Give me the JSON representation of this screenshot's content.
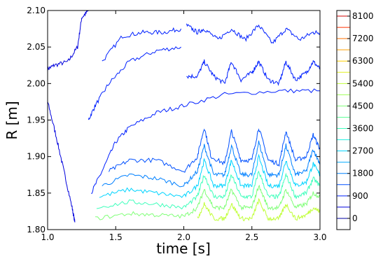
{
  "chart_data": {
    "type": "contour",
    "xlabel": "time [s]",
    "ylabel": "R [m]",
    "xlim": [
      1.0,
      3.0
    ],
    "ylim": [
      1.8,
      2.1
    ],
    "xticks": [
      "1.0",
      "1.5",
      "2.0",
      "2.5",
      "3.0"
    ],
    "yticks": [
      "1.80",
      "1.85",
      "1.90",
      "1.95",
      "2.00",
      "2.05",
      "2.10"
    ],
    "colorbar": {
      "levels": [
        0,
        450,
        900,
        1350,
        1800,
        2250,
        2700,
        3150,
        3600,
        4050,
        4500,
        4950,
        5400,
        5850,
        6300,
        6750,
        7200,
        7650,
        8100
      ],
      "tick_labels": [
        "0",
        "900",
        "1800",
        "2700",
        "3600",
        "4500",
        "5400",
        "6300",
        "7200",
        "8100"
      ],
      "colors": [
        "#0000a0",
        "#0000dd",
        "#0020ff",
        "#0050ff",
        "#0080ff",
        "#00aaff",
        "#00d4ff",
        "#20f0e0",
        "#40ffbc",
        "#60ff98",
        "#80ff78",
        "#a0ff58",
        "#c0ff38",
        "#e0f020",
        "#ffd000",
        "#ffa000",
        "#ff7000",
        "#ff3000",
        "#d00000"
      ]
    },
    "contours": [
      {
        "level": 450,
        "points": [
          [
            1.0,
            2.02
          ],
          [
            1.05,
            2.025
          ],
          [
            1.15,
            2.03
          ],
          [
            1.22,
            2.05
          ],
          [
            1.25,
            2.09
          ],
          [
            1.3,
            2.1
          ]
        ]
      },
      {
        "level": 450,
        "points": [
          [
            1.0,
            1.975
          ],
          [
            1.06,
            1.93
          ],
          [
            1.12,
            1.88
          ],
          [
            1.18,
            1.83
          ],
          [
            1.2,
            1.81
          ]
        ]
      },
      {
        "level": 900,
        "points": [
          [
            1.3,
            1.95
          ],
          [
            1.35,
            1.97
          ],
          [
            1.45,
            2.0
          ],
          [
            1.6,
            2.03
          ],
          [
            1.8,
            2.045
          ],
          [
            1.98,
            2.05
          ]
        ]
      },
      {
        "level": 900,
        "points": [
          [
            1.4,
            2.03
          ],
          [
            1.55,
            2.065
          ],
          [
            1.7,
            2.07
          ],
          [
            1.85,
            2.07
          ],
          [
            1.98,
            2.075
          ]
        ]
      },
      {
        "level": 900,
        "points": [
          [
            1.32,
            1.85
          ],
          [
            1.4,
            1.88
          ],
          [
            1.5,
            1.92
          ],
          [
            1.6,
            1.94
          ],
          [
            1.8,
            1.96
          ],
          [
            2.0,
            1.97
          ],
          [
            2.3,
            1.985
          ],
          [
            2.7,
            1.99
          ],
          [
            3.0,
            1.99
          ]
        ]
      },
      {
        "level": 900,
        "points": [
          [
            2.02,
            2.08
          ],
          [
            2.1,
            2.07
          ],
          [
            2.15,
            2.075
          ],
          [
            2.25,
            2.06
          ],
          [
            2.35,
            2.075
          ],
          [
            2.45,
            2.06
          ],
          [
            2.55,
            2.08
          ],
          [
            2.65,
            2.055
          ],
          [
            2.75,
            2.075
          ],
          [
            2.85,
            2.06
          ],
          [
            2.95,
            2.07
          ],
          [
            3.0,
            2.07
          ]
        ]
      },
      {
        "level": 900,
        "points": [
          [
            2.02,
            2.01
          ],
          [
            2.1,
            2.01
          ],
          [
            2.15,
            2.03
          ],
          [
            2.22,
            2.01
          ],
          [
            2.3,
            2.0
          ],
          [
            2.35,
            2.03
          ],
          [
            2.42,
            2.005
          ],
          [
            2.5,
            2.015
          ],
          [
            2.55,
            2.03
          ],
          [
            2.62,
            2.005
          ],
          [
            2.7,
            2.0
          ],
          [
            2.75,
            2.03
          ],
          [
            2.82,
            2.005
          ],
          [
            2.9,
            2.015
          ],
          [
            2.95,
            2.03
          ],
          [
            3.0,
            2.02
          ]
        ]
      },
      {
        "level": 1350,
        "points": [
          [
            1.45,
            1.88
          ],
          [
            1.6,
            1.895
          ],
          [
            1.8,
            1.895
          ],
          [
            2.0,
            1.88
          ],
          [
            2.1,
            1.9
          ],
          [
            2.15,
            1.94
          ],
          [
            2.2,
            1.9
          ],
          [
            2.3,
            1.89
          ],
          [
            2.35,
            1.935
          ],
          [
            2.42,
            1.895
          ],
          [
            2.5,
            1.895
          ],
          [
            2.55,
            1.94
          ],
          [
            2.62,
            1.895
          ],
          [
            2.7,
            1.89
          ],
          [
            2.75,
            1.935
          ],
          [
            2.82,
            1.895
          ],
          [
            2.9,
            1.9
          ],
          [
            2.95,
            1.93
          ],
          [
            3.0,
            1.91
          ]
        ]
      },
      {
        "level": 1800,
        "points": [
          [
            1.4,
            1.86
          ],
          [
            1.6,
            1.875
          ],
          [
            1.8,
            1.87
          ],
          [
            2.0,
            1.86
          ],
          [
            2.1,
            1.88
          ],
          [
            2.15,
            1.915
          ],
          [
            2.22,
            1.875
          ],
          [
            2.3,
            1.875
          ],
          [
            2.35,
            1.915
          ],
          [
            2.42,
            1.875
          ],
          [
            2.5,
            1.875
          ],
          [
            2.55,
            1.92
          ],
          [
            2.62,
            1.875
          ],
          [
            2.7,
            1.875
          ],
          [
            2.75,
            1.915
          ],
          [
            2.82,
            1.875
          ],
          [
            2.9,
            1.88
          ],
          [
            2.95,
            1.91
          ],
          [
            3.0,
            1.89
          ]
        ]
      },
      {
        "level": 2700,
        "points": [
          [
            1.38,
            1.845
          ],
          [
            1.6,
            1.855
          ],
          [
            1.8,
            1.85
          ],
          [
            2.0,
            1.845
          ],
          [
            2.1,
            1.86
          ],
          [
            2.15,
            1.895
          ],
          [
            2.22,
            1.86
          ],
          [
            2.3,
            1.86
          ],
          [
            2.35,
            1.895
          ],
          [
            2.42,
            1.86
          ],
          [
            2.5,
            1.86
          ],
          [
            2.55,
            1.9
          ],
          [
            2.62,
            1.86
          ],
          [
            2.7,
            1.86
          ],
          [
            2.75,
            1.895
          ],
          [
            2.82,
            1.86
          ],
          [
            2.9,
            1.865
          ],
          [
            2.95,
            1.89
          ],
          [
            3.0,
            1.875
          ]
        ]
      },
      {
        "level": 3600,
        "points": [
          [
            1.36,
            1.83
          ],
          [
            1.6,
            1.838
          ],
          [
            1.8,
            1.835
          ],
          [
            2.0,
            1.83
          ],
          [
            2.1,
            1.845
          ],
          [
            2.15,
            1.875
          ],
          [
            2.22,
            1.845
          ],
          [
            2.3,
            1.845
          ],
          [
            2.35,
            1.875
          ],
          [
            2.42,
            1.845
          ],
          [
            2.5,
            1.845
          ],
          [
            2.55,
            1.88
          ],
          [
            2.62,
            1.845
          ],
          [
            2.7,
            1.845
          ],
          [
            2.75,
            1.875
          ],
          [
            2.82,
            1.845
          ],
          [
            2.9,
            1.85
          ],
          [
            2.95,
            1.87
          ],
          [
            3.0,
            1.86
          ]
        ]
      },
      {
        "level": 4500,
        "points": [
          [
            1.35,
            1.815
          ],
          [
            1.6,
            1.822
          ],
          [
            1.8,
            1.82
          ],
          [
            2.0,
            1.818
          ],
          [
            2.1,
            1.83
          ],
          [
            2.15,
            1.855
          ],
          [
            2.22,
            1.83
          ],
          [
            2.3,
            1.83
          ],
          [
            2.35,
            1.855
          ],
          [
            2.42,
            1.83
          ],
          [
            2.5,
            1.83
          ],
          [
            2.55,
            1.86
          ],
          [
            2.62,
            1.83
          ],
          [
            2.7,
            1.83
          ],
          [
            2.75,
            1.855
          ],
          [
            2.82,
            1.83
          ],
          [
            2.9,
            1.835
          ],
          [
            2.95,
            1.85
          ],
          [
            3.0,
            1.845
          ]
        ]
      },
      {
        "level": 5400,
        "points": [
          [
            2.1,
            1.815
          ],
          [
            2.15,
            1.835
          ],
          [
            2.22,
            1.815
          ],
          [
            2.3,
            1.815
          ],
          [
            2.35,
            1.835
          ],
          [
            2.42,
            1.815
          ],
          [
            2.5,
            1.815
          ],
          [
            2.55,
            1.84
          ],
          [
            2.62,
            1.815
          ],
          [
            2.7,
            1.815
          ],
          [
            2.75,
            1.835
          ],
          [
            2.82,
            1.815
          ],
          [
            2.9,
            1.82
          ],
          [
            2.95,
            1.83
          ],
          [
            3.0,
            1.825
          ]
        ]
      }
    ]
  }
}
